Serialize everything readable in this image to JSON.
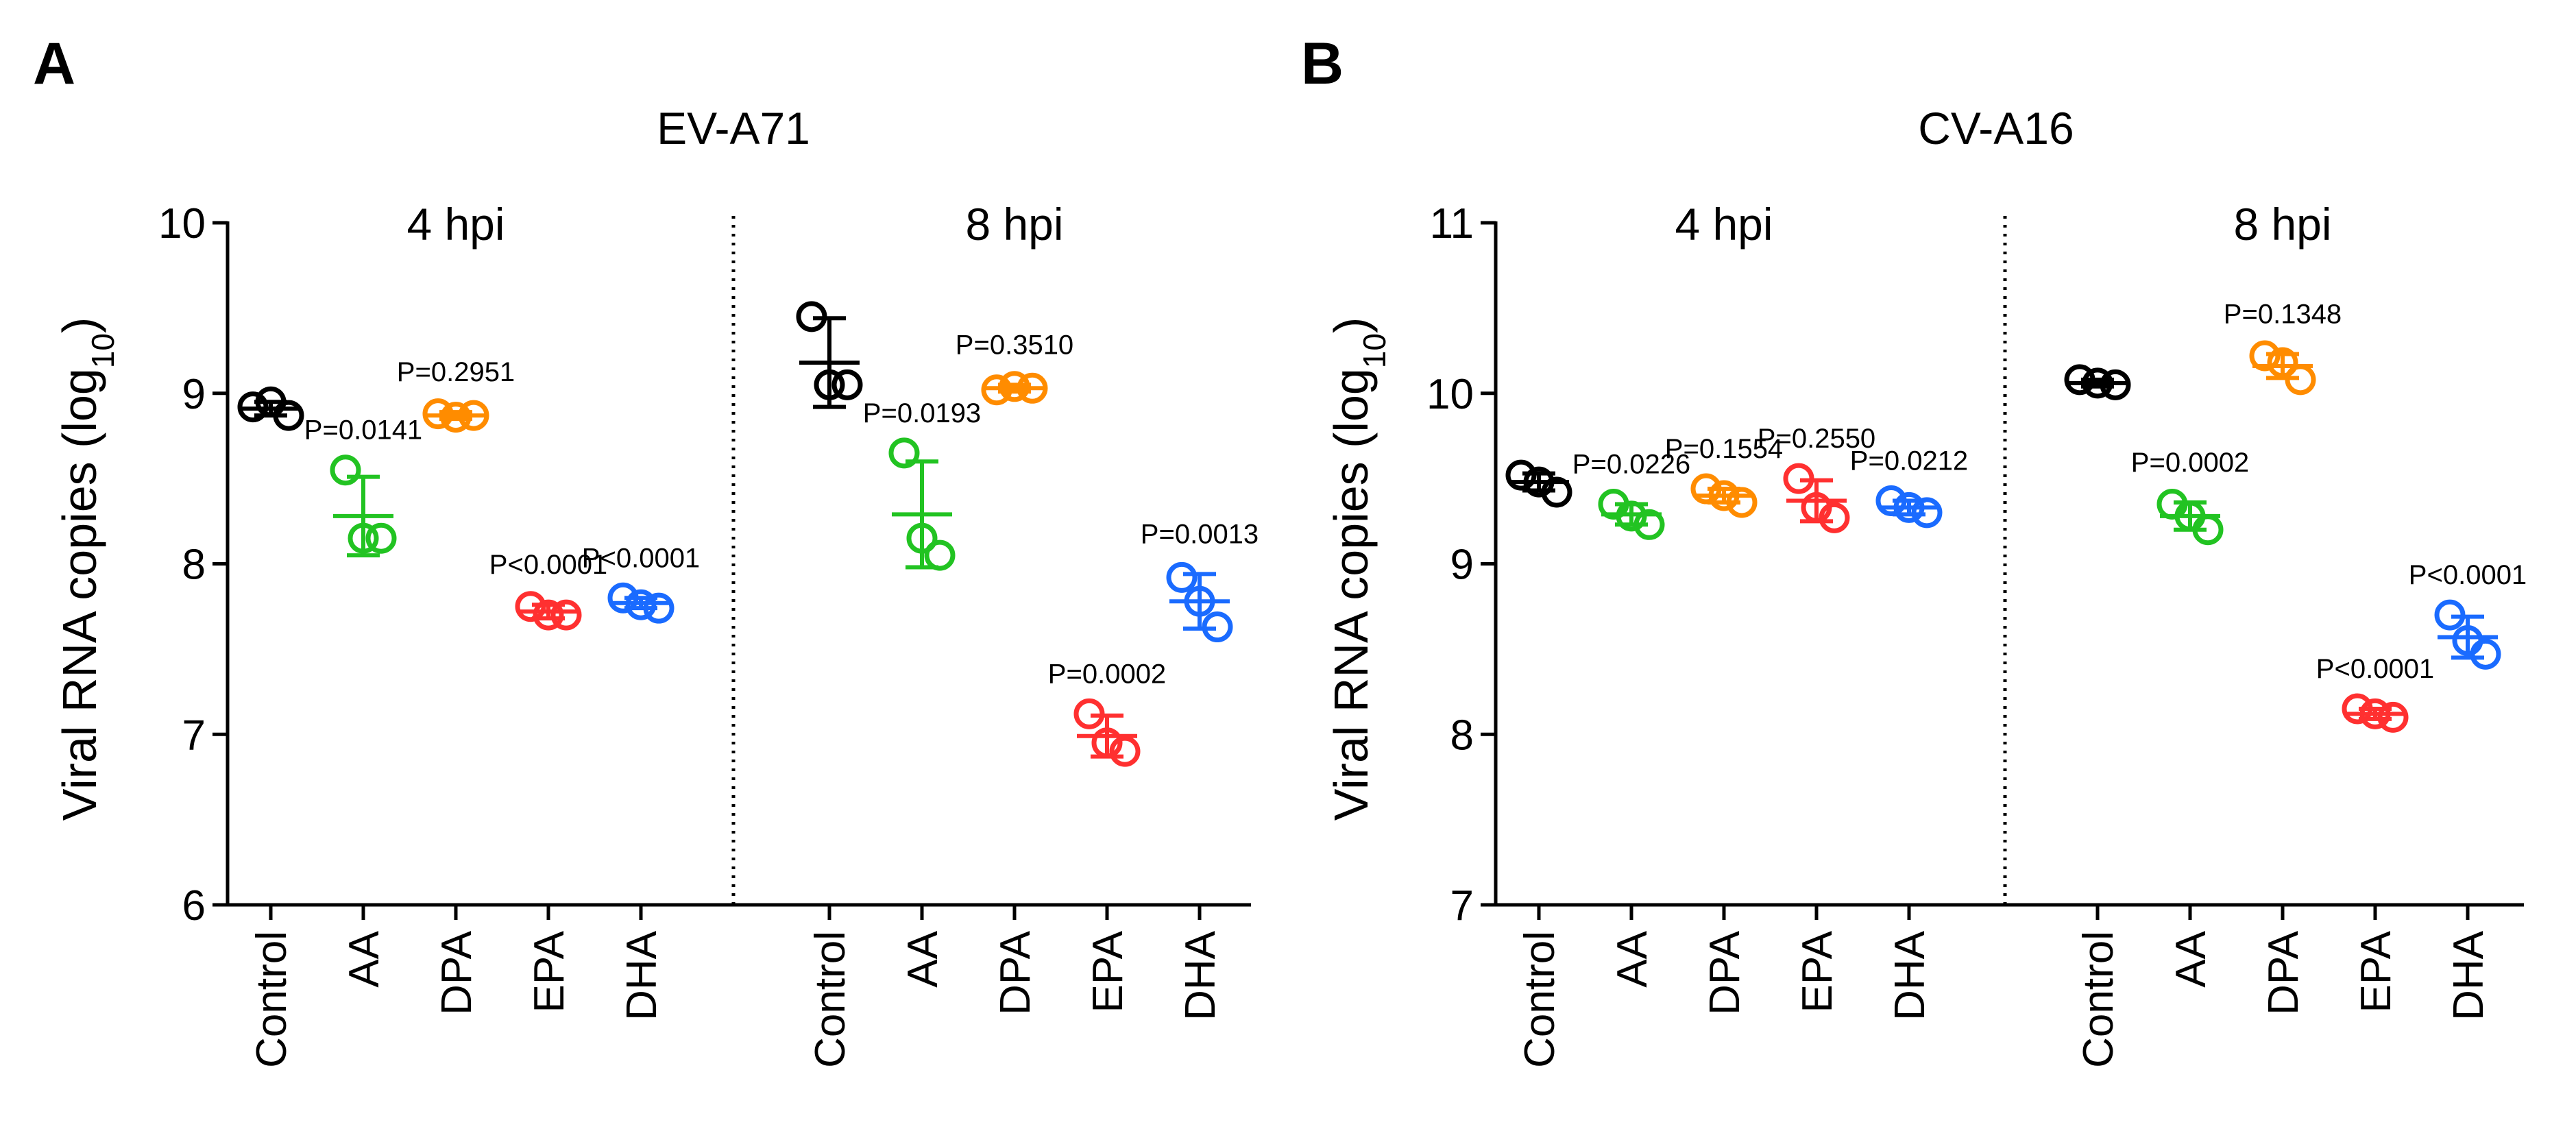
{
  "chart_data": [
    {
      "type": "scatter",
      "panel_label": "A",
      "title": "EV-A71",
      "ylabel_main": "Viral RNA copies (log",
      "ylabel_sub": "10",
      "ylabel_end": ")",
      "ylim": [
        6,
        10
      ],
      "yticks": [
        "6",
        "7",
        "8",
        "9",
        "10"
      ],
      "groups": [
        {
          "label": "4 hpi",
          "series": [
            {
              "name": "Control",
              "color": "#000000",
              "points": [
                8.92,
                8.95,
                8.87
              ],
              "mean": 8.91,
              "sd": 0.04,
              "pvalue": ""
            },
            {
              "name": "AA",
              "color": "#22c322",
              "points": [
                8.55,
                8.15,
                8.15
              ],
              "mean": 8.28,
              "sd": 0.23,
              "pvalue": "P=0.0141"
            },
            {
              "name": "DPA",
              "color": "#ff8c00",
              "points": [
                8.88,
                8.86,
                8.87
              ],
              "mean": 8.87,
              "sd": 0.02,
              "pvalue": "P=0.2951"
            },
            {
              "name": "EPA",
              "color": "#ff3030",
              "points": [
                7.75,
                7.7,
                7.7
              ],
              "mean": 7.72,
              "sd": 0.04,
              "pvalue": "P<0.0001"
            },
            {
              "name": "DHA",
              "color": "#1a6bff",
              "points": [
                7.8,
                7.76,
                7.74
              ],
              "mean": 7.77,
              "sd": 0.03,
              "pvalue": "P<0.0001"
            }
          ]
        },
        {
          "label": "8 hpi",
          "series": [
            {
              "name": "Control",
              "color": "#000000",
              "points": [
                9.45,
                9.05,
                9.05
              ],
              "mean": 9.18,
              "sd": 0.26,
              "pvalue": ""
            },
            {
              "name": "AA",
              "color": "#22c322",
              "points": [
                8.65,
                8.15,
                8.05
              ],
              "mean": 8.29,
              "sd": 0.31,
              "pvalue": "P=0.0193"
            },
            {
              "name": "DPA",
              "color": "#ff8c00",
              "points": [
                9.02,
                9.04,
                9.03
              ],
              "mean": 9.03,
              "sd": 0.02,
              "pvalue": "P=0.3510"
            },
            {
              "name": "EPA",
              "color": "#ff3030",
              "points": [
                7.12,
                6.95,
                6.9
              ],
              "mean": 6.99,
              "sd": 0.12,
              "pvalue": "P=0.0002"
            },
            {
              "name": "DHA",
              "color": "#1a6bff",
              "points": [
                7.92,
                7.78,
                7.63
              ],
              "mean": 7.78,
              "sd": 0.16,
              "pvalue": "P=0.0013"
            }
          ]
        }
      ]
    },
    {
      "type": "scatter",
      "panel_label": "B",
      "title": "CV-A16",
      "ylabel_main": "Viral RNA copies (log",
      "ylabel_sub": "10",
      "ylabel_end": ")",
      "ylim": [
        7,
        11
      ],
      "yticks": [
        "7",
        "8",
        "9",
        "10",
        "11"
      ],
      "groups": [
        {
          "label": "4 hpi",
          "series": [
            {
              "name": "Control",
              "color": "#000000",
              "points": [
                9.52,
                9.48,
                9.42
              ],
              "mean": 9.48,
              "sd": 0.05,
              "pvalue": ""
            },
            {
              "name": "AA",
              "color": "#22c322",
              "points": [
                9.35,
                9.28,
                9.23
              ],
              "mean": 9.29,
              "sd": 0.06,
              "pvalue": "P=0.0226"
            },
            {
              "name": "DPA",
              "color": "#ff8c00",
              "points": [
                9.44,
                9.4,
                9.36
              ],
              "mean": 9.4,
              "sd": 0.04,
              "pvalue": "P=0.1554"
            },
            {
              "name": "EPA",
              "color": "#ff3030",
              "points": [
                9.5,
                9.33,
                9.27
              ],
              "mean": 9.37,
              "sd": 0.12,
              "pvalue": "P=0.2550"
            },
            {
              "name": "DHA",
              "color": "#1a6bff",
              "points": [
                9.37,
                9.33,
                9.3
              ],
              "mean": 9.33,
              "sd": 0.04,
              "pvalue": "P=0.0212"
            }
          ]
        },
        {
          "label": "8 hpi",
          "series": [
            {
              "name": "Control",
              "color": "#000000",
              "points": [
                10.08,
                10.06,
                10.05
              ],
              "mean": 10.06,
              "sd": 0.02,
              "pvalue": ""
            },
            {
              "name": "AA",
              "color": "#22c322",
              "points": [
                9.35,
                9.28,
                9.2
              ],
              "mean": 9.28,
              "sd": 0.08,
              "pvalue": "P=0.0002"
            },
            {
              "name": "DPA",
              "color": "#ff8c00",
              "points": [
                10.22,
                10.18,
                10.08
              ],
              "mean": 10.16,
              "sd": 0.07,
              "pvalue": "P=0.1348"
            },
            {
              "name": "EPA",
              "color": "#ff3030",
              "points": [
                8.15,
                8.12,
                8.1
              ],
              "mean": 8.12,
              "sd": 0.03,
              "pvalue": "P<0.0001"
            },
            {
              "name": "DHA",
              "color": "#1a6bff",
              "points": [
                8.7,
                8.55,
                8.47
              ],
              "mean": 8.57,
              "sd": 0.12,
              "pvalue": "P<0.0001"
            }
          ]
        }
      ]
    }
  ]
}
